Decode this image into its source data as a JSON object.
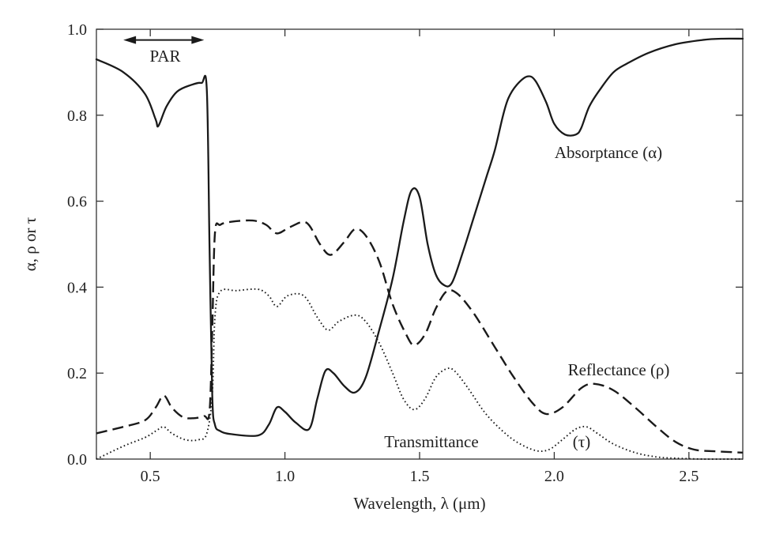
{
  "chart_data": {
    "type": "line",
    "title": "",
    "xlabel": "Wavelength, λ (μm)",
    "ylabel": "α, ρ or τ",
    "xlim": [
      0.3,
      2.7
    ],
    "ylim": [
      0.0,
      1.0
    ],
    "x_ticks": [
      0.5,
      1.0,
      1.5,
      2.0,
      2.5
    ],
    "x_tick_labels": [
      "0.5",
      "1.0",
      "1.5",
      "2.0",
      "2.5"
    ],
    "y_ticks": [
      0.0,
      0.2,
      0.4,
      0.6,
      0.8,
      1.0
    ],
    "y_tick_labels": [
      "0.0",
      "0.2",
      "0.4",
      "0.6",
      "0.8",
      "1.0"
    ],
    "grid": false,
    "legend": "none",
    "series": [
      {
        "name": "Absorptance (α)",
        "style": "solid",
        "x": [
          0.3,
          0.4,
          0.48,
          0.52,
          0.53,
          0.56,
          0.6,
          0.65,
          0.69,
          0.71,
          0.72,
          0.73,
          0.74,
          0.76,
          0.8,
          0.9,
          0.94,
          0.97,
          1.0,
          1.04,
          1.09,
          1.12,
          1.15,
          1.18,
          1.22,
          1.26,
          1.3,
          1.35,
          1.4,
          1.44,
          1.47,
          1.5,
          1.53,
          1.56,
          1.59,
          1.62,
          1.66,
          1.7,
          1.75,
          1.78,
          1.81,
          1.83,
          1.86,
          1.9,
          1.93,
          1.97,
          2.0,
          2.04,
          2.08,
          2.1,
          2.13,
          2.17,
          2.22,
          2.27,
          2.35,
          2.45,
          2.55,
          2.62,
          2.7
        ],
        "y": [
          0.93,
          0.9,
          0.85,
          0.79,
          0.775,
          0.82,
          0.855,
          0.87,
          0.875,
          0.86,
          0.5,
          0.15,
          0.08,
          0.065,
          0.058,
          0.055,
          0.08,
          0.12,
          0.11,
          0.085,
          0.07,
          0.14,
          0.205,
          0.2,
          0.17,
          0.155,
          0.19,
          0.3,
          0.42,
          0.55,
          0.625,
          0.61,
          0.5,
          0.43,
          0.405,
          0.41,
          0.48,
          0.56,
          0.66,
          0.72,
          0.8,
          0.84,
          0.87,
          0.89,
          0.88,
          0.83,
          0.78,
          0.755,
          0.755,
          0.77,
          0.82,
          0.86,
          0.9,
          0.92,
          0.945,
          0.965,
          0.975,
          0.978,
          0.978
        ]
      },
      {
        "name": "Reflectance (ρ)",
        "style": "dashed",
        "x": [
          0.3,
          0.4,
          0.48,
          0.52,
          0.55,
          0.58,
          0.62,
          0.66,
          0.7,
          0.72,
          0.73,
          0.74,
          0.76,
          0.8,
          0.88,
          0.93,
          0.97,
          1.02,
          1.08,
          1.13,
          1.17,
          1.22,
          1.26,
          1.3,
          1.35,
          1.4,
          1.45,
          1.48,
          1.52,
          1.56,
          1.6,
          1.64,
          1.7,
          1.78,
          1.85,
          1.92,
          1.97,
          2.03,
          2.1,
          2.15,
          2.22,
          2.3,
          2.38,
          2.45,
          2.52,
          2.6,
          2.7
        ],
        "y": [
          0.06,
          0.075,
          0.09,
          0.12,
          0.148,
          0.12,
          0.098,
          0.095,
          0.1,
          0.11,
          0.3,
          0.525,
          0.545,
          0.552,
          0.555,
          0.545,
          0.525,
          0.54,
          0.55,
          0.5,
          0.475,
          0.505,
          0.535,
          0.52,
          0.46,
          0.36,
          0.29,
          0.265,
          0.29,
          0.35,
          0.39,
          0.385,
          0.34,
          0.26,
          0.19,
          0.13,
          0.105,
          0.12,
          0.165,
          0.175,
          0.16,
          0.12,
          0.075,
          0.04,
          0.022,
          0.018,
          0.015
        ]
      },
      {
        "name": "Transmittance (τ)",
        "style": "dotted",
        "x": [
          0.3,
          0.4,
          0.48,
          0.52,
          0.55,
          0.58,
          0.63,
          0.68,
          0.71,
          0.73,
          0.74,
          0.76,
          0.82,
          0.9,
          0.94,
          0.97,
          1.01,
          1.07,
          1.12,
          1.16,
          1.2,
          1.26,
          1.3,
          1.35,
          1.4,
          1.44,
          1.48,
          1.52,
          1.56,
          1.6,
          1.63,
          1.68,
          1.74,
          1.8,
          1.86,
          1.93,
          1.98,
          2.03,
          2.08,
          2.12,
          2.16,
          2.22,
          2.3,
          2.38,
          2.45,
          2.55,
          2.65,
          2.7
        ],
        "y": [
          0.0,
          0.03,
          0.05,
          0.065,
          0.075,
          0.06,
          0.045,
          0.045,
          0.06,
          0.15,
          0.33,
          0.39,
          0.392,
          0.395,
          0.38,
          0.355,
          0.38,
          0.38,
          0.33,
          0.3,
          0.32,
          0.335,
          0.32,
          0.27,
          0.2,
          0.14,
          0.115,
          0.14,
          0.19,
          0.21,
          0.205,
          0.165,
          0.11,
          0.07,
          0.04,
          0.02,
          0.022,
          0.045,
          0.07,
          0.075,
          0.06,
          0.035,
          0.015,
          0.005,
          0.002,
          0.0,
          0.0,
          0.0
        ]
      }
    ],
    "annotations": {
      "par": {
        "text": "PAR",
        "x_start": 0.4,
        "x_end": 0.7,
        "y": 0.975
      },
      "absorptance": {
        "text": "Absorptance (α)",
        "x": 2.18,
        "y": 0.71
      },
      "reflectance": {
        "text": "Reflectance (ρ)",
        "x": 2.18,
        "y": 0.205
      },
      "transmittance": {
        "text": "Transmittance",
        "x": 1.6,
        "y": 0.035
      },
      "tau": {
        "text": "(τ)",
        "x": 2.12,
        "y": 0.035
      }
    },
    "colors": {
      "line": "#1a1a1a",
      "axes": "#333333"
    }
  }
}
